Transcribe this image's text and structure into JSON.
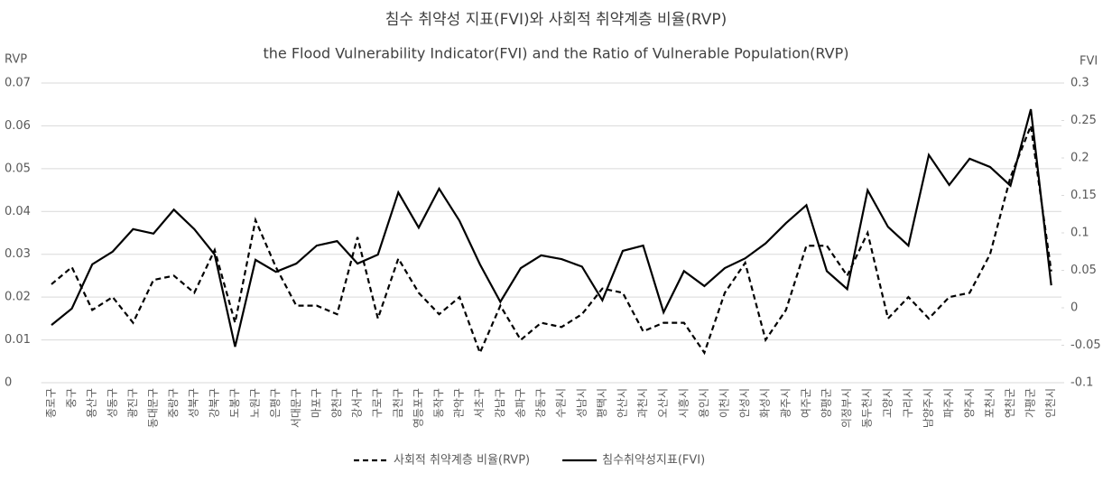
{
  "chart_data": {
    "type": "line",
    "title": "침수 취약성 지표(FVI)와 사회적 취약계층 비율(RVP)",
    "subtitle": "the Flood Vulnerability Indicator(FVI) and the Ratio of Vulnerable Population(RVP)",
    "ylabel": "RVP",
    "y2label": "FVI",
    "categories": [
      "종로구",
      "중구",
      "용산구",
      "성동구",
      "광진구",
      "동대문구",
      "중랑구",
      "성북구",
      "강북구",
      "도봉구",
      "노원구",
      "은평구",
      "서대문구",
      "마포구",
      "양천구",
      "강서구",
      "구로구",
      "금천구",
      "영등포구",
      "동작구",
      "관악구",
      "서초구",
      "강남구",
      "송파구",
      "강동구",
      "수원시",
      "성남시",
      "평택시",
      "안산시",
      "과천시",
      "오산시",
      "시흥시",
      "용인시",
      "이천시",
      "안성시",
      "화성시",
      "광주시",
      "여주군",
      "양평군",
      "의정부시",
      "동두천시",
      "고양시",
      "구리시",
      "남양주시",
      "파주시",
      "양주시",
      "포천시",
      "연천군",
      "가평군",
      "인천시"
    ],
    "series": [
      {
        "name": "사회적 취약계층 비율(RVP)",
        "color": "#000000",
        "line_style": "dashed",
        "axis": "y",
        "values": [
          0.023,
          0.027,
          0.017,
          0.02,
          0.014,
          0.024,
          0.025,
          0.021,
          0.031,
          0.014,
          0.038,
          0.027,
          0.018,
          0.018,
          0.016,
          0.034,
          0.015,
          0.029,
          0.021,
          0.016,
          0.02,
          0.007,
          0.018,
          0.01,
          0.014,
          0.013,
          0.016,
          0.022,
          0.021,
          0.012,
          0.014,
          0.014,
          0.007,
          0.021,
          0.028,
          0.01,
          0.017,
          0.032,
          0.032,
          0.025,
          0.035,
          0.015,
          0.02,
          0.015,
          0.02,
          0.021,
          0.03,
          0.048,
          0.06,
          0.026
        ]
      },
      {
        "name": "침수취약성지표(FVI)",
        "color": "#000000",
        "line_style": "solid",
        "axis": "y2",
        "values": [
          -0.023,
          -0.001,
          0.058,
          0.075,
          0.105,
          0.099,
          0.131,
          0.105,
          0.071,
          -0.052,
          0.064,
          0.048,
          0.059,
          0.083,
          0.089,
          0.059,
          0.071,
          0.154,
          0.107,
          0.159,
          0.116,
          0.058,
          0.008,
          0.053,
          0.07,
          0.065,
          0.055,
          0.01,
          0.076,
          0.083,
          -0.006,
          0.049,
          0.029,
          0.053,
          0.066,
          0.086,
          0.113,
          0.137,
          0.049,
          0.025,
          0.157,
          0.108,
          0.083,
          0.204,
          0.164,
          0.199,
          0.188,
          0.163,
          0.265,
          0.03
        ]
      }
    ],
    "ylim": [
      0,
      0.07
    ],
    "yticks": [
      0,
      0.01,
      0.02,
      0.03,
      0.04,
      0.05,
      0.06,
      0.07
    ],
    "y2lim": [
      -0.1,
      0.3
    ],
    "y2ticks": [
      -0.1,
      -0.05,
      0,
      0.05,
      0.1,
      0.15,
      0.2,
      0.25,
      0.3
    ],
    "grid": true,
    "legend": "bottom"
  }
}
